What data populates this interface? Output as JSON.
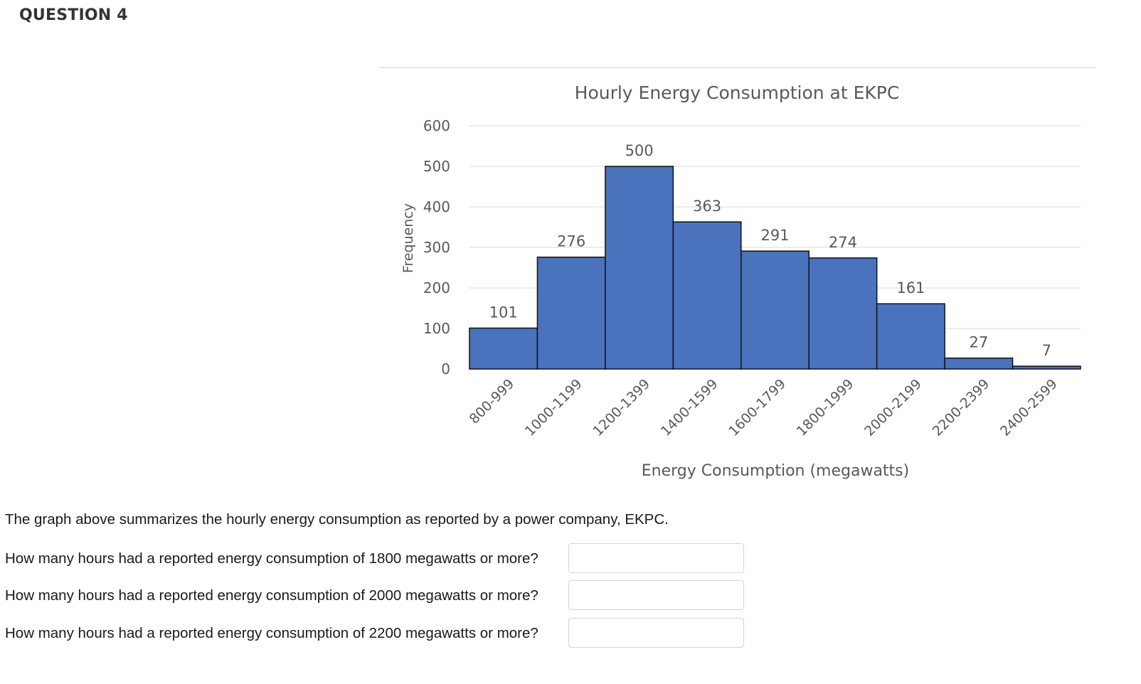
{
  "question": {
    "title": "QUESTION 4",
    "intro": "The graph above summarizes the hourly energy consumption as reported by a power company, EKPC.",
    "items": [
      {
        "text": "How many hours had a reported energy consumption of 1800 megawatts or more?",
        "answer": ""
      },
      {
        "text": "How many hours had a reported energy consumption of 2000 megawatts or more?",
        "answer": ""
      },
      {
        "text": "How many hours had a reported energy consumption of 2200 megawatts or more?",
        "answer": ""
      }
    ]
  },
  "colors": {
    "bar_fill": "#4a72bd",
    "bar_stroke": "#111111",
    "grid": "#d9d9d9",
    "text": "#595959"
  },
  "chart_data": {
    "type": "bar",
    "title": "Hourly Energy Consumption at EKPC",
    "xlabel": "Energy Consumption (megawatts)",
    "ylabel": "Frequency",
    "categories": [
      "800-999",
      "1000-1199",
      "1200-1399",
      "1400-1599",
      "1600-1799",
      "1800-1999",
      "2000-2199",
      "2200-2399",
      "2400-2599"
    ],
    "values": [
      101,
      276,
      500,
      363,
      291,
      274,
      161,
      27,
      7
    ],
    "data_labels": [
      "101",
      "276",
      "500",
      "363",
      "291",
      "274",
      "161",
      "27",
      "7"
    ],
    "ylim": [
      0,
      600
    ],
    "yticks": [
      0,
      100,
      200,
      300,
      400,
      500,
      600
    ],
    "grid": true,
    "legend": "none"
  }
}
